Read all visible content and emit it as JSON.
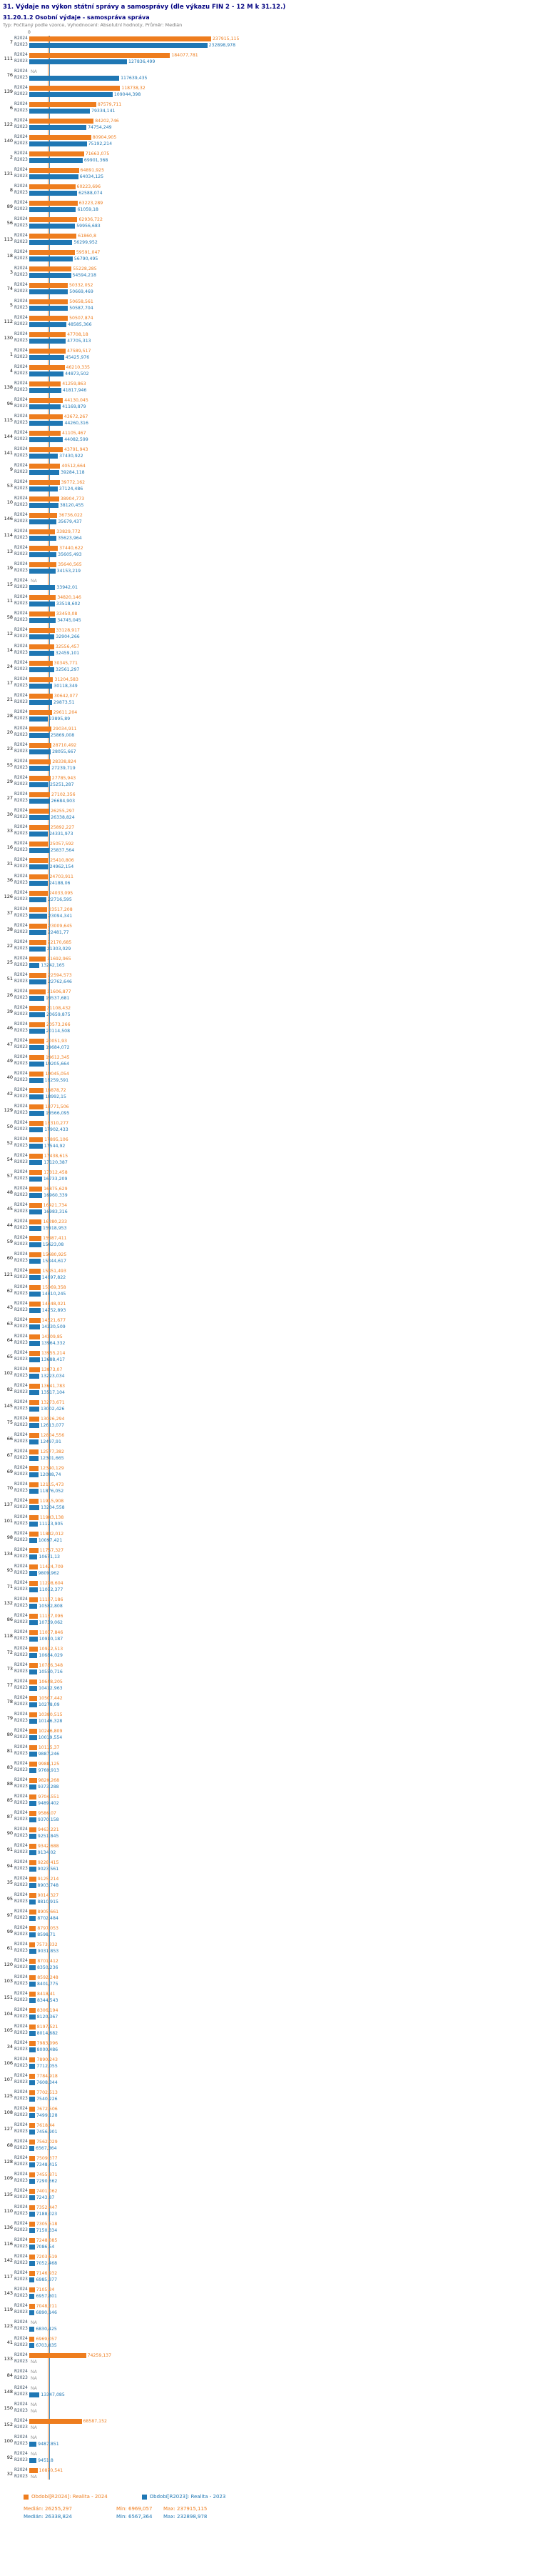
{
  "header": {
    "title": "31. Výdaje na výkon státní správy a samosprávy (dle výkazu FIN 2 - 12 M k 31.12.)",
    "subtitle": "31.20.1.2 Osobní výdaje - samospráva správa",
    "meta": "Typ: Počítaný podle vzorce, Vyhodnocení: Absolutní hodnoty, Průměr: Medián"
  },
  "colors": {
    "r2024": "#ee7d1e",
    "r2023": "#1f77b4",
    "na": "#999999"
  },
  "chart_data": {
    "type": "bar",
    "orientation": "horizontal",
    "title": "31.20.1.2 Osobní výdaje - samospráva správa",
    "series_labels": [
      "R2024",
      "R2023"
    ],
    "axis_zero_label": "0",
    "max_value": 237915.115,
    "grid": false,
    "legend_position": "bottom",
    "medians": {
      "r2024": 26255.297,
      "r2023": 26338.824
    },
    "mins": {
      "r2024": 6969.057,
      "r2023": 6567.364
    },
    "maxs": {
      "r2024": 237915.115,
      "r2023": 232898.978
    },
    "rows": [
      {
        "id": "7",
        "r2024": 237915.115,
        "r2023": 232898.978
      },
      {
        "id": "111",
        "r2024": 184077.781,
        "r2023": 127836.499
      },
      {
        "id": "76",
        "r2024": null,
        "r2023": 117639.435
      },
      {
        "id": "139",
        "r2024": 118738.32,
        "r2023": 109044.398
      },
      {
        "id": "6",
        "r2024": 87579.711,
        "r2023": 79334.141
      },
      {
        "id": "122",
        "r2024": 84202.746,
        "r2023": 74754.249
      },
      {
        "id": "140",
        "r2024": 80904.905,
        "r2023": 75192.214
      },
      {
        "id": "2",
        "r2024": 71663.075,
        "r2023": 69901.368
      },
      {
        "id": "131",
        "r2024": 64891.925,
        "r2023": 64034.125
      },
      {
        "id": "8",
        "r2024": 60223.696,
        "r2023": 62588.074
      },
      {
        "id": "89",
        "r2024": 63223.289,
        "r2023": 61059.18
      },
      {
        "id": "56",
        "r2024": 62936.722,
        "r2023": 59956.683
      },
      {
        "id": "113",
        "r2024": 61860.8,
        "r2023": 56299.952
      },
      {
        "id": "18",
        "r2024": 59591.047,
        "r2023": 56790.495
      },
      {
        "id": "3",
        "r2024": 55228.285,
        "r2023": 54594.218
      },
      {
        "id": "74",
        "r2024": 50332.052,
        "r2023": 50669.469
      },
      {
        "id": "5",
        "r2024": 50658.561,
        "r2023": 50587.704
      },
      {
        "id": "112",
        "r2024": 50507.874,
        "r2023": 48585.366
      },
      {
        "id": "130",
        "r2024": 47708.18,
        "r2023": 47705.313
      },
      {
        "id": "1",
        "r2024": 47589.517,
        "r2023": 45425.976
      },
      {
        "id": "4",
        "r2024": 46210.335,
        "r2023": 44873.502
      },
      {
        "id": "138",
        "r2024": 41259.863,
        "r2023": 41817.946
      },
      {
        "id": "96",
        "r2024": 44130.045,
        "r2023": 41169.879
      },
      {
        "id": "115",
        "r2024": 43672.267,
        "r2023": 44260.316
      },
      {
        "id": "144",
        "r2024": 41105.467,
        "r2023": 44082.599
      },
      {
        "id": "141",
        "r2024": 43791.943,
        "r2023": 37430.922
      },
      {
        "id": "9",
        "r2024": 40512.664,
        "r2023": 39284.118
      },
      {
        "id": "53",
        "r2024": 39772.162,
        "r2023": 37124.486
      },
      {
        "id": "10",
        "r2024": 38904.773,
        "r2023": 38120.455
      },
      {
        "id": "146",
        "r2024": 36736.022,
        "r2023": 35679.437
      },
      {
        "id": "114",
        "r2024": 33829.772,
        "r2023": 35623.964
      },
      {
        "id": "13",
        "r2024": 37440.622,
        "r2023": 35605.493
      },
      {
        "id": "19",
        "r2024": 35640.565,
        "r2023": 34153.219
      },
      {
        "id": "15",
        "r2024": null,
        "r2023": 33942.01
      },
      {
        "id": "11",
        "r2024": 34820.146,
        "r2023": 33518.602
      },
      {
        "id": "58",
        "r2024": 33450.08,
        "r2023": 34745.045
      },
      {
        "id": "12",
        "r2024": 33128.917,
        "r2023": 32904.266
      },
      {
        "id": "14",
        "r2024": 32556.457,
        "r2023": 32459.101
      },
      {
        "id": "24",
        "r2024": 30345.771,
        "r2023": 32561.297
      },
      {
        "id": "17",
        "r2024": 31204.583,
        "r2023": 30118.349
      },
      {
        "id": "21",
        "r2024": 30642.077,
        "r2023": 29873.51
      },
      {
        "id": "28",
        "r2024": 29611.204,
        "r2023": 23895.89
      },
      {
        "id": "20",
        "r2024": 29034.911,
        "r2023": 25869.008
      },
      {
        "id": "23",
        "r2024": 28710.492,
        "r2023": 28055.667
      },
      {
        "id": "55",
        "r2024": 28338.824,
        "r2023": 27239.719
      },
      {
        "id": "29",
        "r2024": 27785.943,
        "r2023": 25251.287
      },
      {
        "id": "27",
        "r2024": 27102.356,
        "r2023": 26684.903
      },
      {
        "id": "30",
        "r2024": 26255.297,
        "r2023": 26338.824
      },
      {
        "id": "33",
        "r2024": 25892.227,
        "r2023": 24331.973
      },
      {
        "id": "16",
        "r2024": 25057.592,
        "r2023": 25837.564
      },
      {
        "id": "31",
        "r2024": 25410.806,
        "r2023": 24962.154
      },
      {
        "id": "36",
        "r2024": 24703.911,
        "r2023": 24188.06
      },
      {
        "id": "126",
        "r2024": 24033.095,
        "r2023": 22716.595
      },
      {
        "id": "37",
        "r2024": 23517.208,
        "r2023": 23094.341
      },
      {
        "id": "38",
        "r2024": 23009.645,
        "r2023": 22481.77
      },
      {
        "id": "22",
        "r2024": 22170.685,
        "r2023": 21303.029
      },
      {
        "id": "25",
        "r2024": 21692.965,
        "r2023": 13242.165
      },
      {
        "id": "51",
        "r2024": 22594.573,
        "r2023": 22762.646
      },
      {
        "id": "26",
        "r2024": 21606.877,
        "r2023": 19537.681
      },
      {
        "id": "39",
        "r2024": 21108.432,
        "r2023": 20659.875
      },
      {
        "id": "46",
        "r2024": 20573.266,
        "r2023": 20114.508
      },
      {
        "id": "47",
        "r2024": 20051.93,
        "r2023": 19684.072
      },
      {
        "id": "49",
        "r2024": 19612.345,
        "r2023": 19205.664
      },
      {
        "id": "40",
        "r2024": 19045.054,
        "r2023": 18259.591
      },
      {
        "id": "42",
        "r2024": 18878.72,
        "r2023": 18992.15
      },
      {
        "id": "129",
        "r2024": 18771.506,
        "r2023": 19566.095
      },
      {
        "id": "50",
        "r2024": 18310.277,
        "r2023": 17902.433
      },
      {
        "id": "52",
        "r2024": 17895.106,
        "r2023": 17544.92
      },
      {
        "id": "54",
        "r2024": 17438.615,
        "r2023": 17120.387
      },
      {
        "id": "57",
        "r2024": 17012.458,
        "r2023": 16733.209
      },
      {
        "id": "48",
        "r2024": 16875.629,
        "r2023": 16960.339
      },
      {
        "id": "45",
        "r2024": 16421.734,
        "r2023": 16983.316
      },
      {
        "id": "44",
        "r2024": 16280.233,
        "r2023": 15918.953
      },
      {
        "id": "59",
        "r2024": 15987.411,
        "r2023": 15623.08
      },
      {
        "id": "60",
        "r2024": 15680.925,
        "r2023": 15344.617
      },
      {
        "id": "121",
        "r2024": 15351.493,
        "r2023": 14697.822
      },
      {
        "id": "62",
        "r2024": 15069.358,
        "r2023": 14810.245
      },
      {
        "id": "43",
        "r2024": 14848.021,
        "r2023": 14752.893
      },
      {
        "id": "63",
        "r2024": 14521.677,
        "r2023": 14230.509
      },
      {
        "id": "64",
        "r2024": 14209.85,
        "r2023": 13964.332
      },
      {
        "id": "65",
        "r2024": 13955.214,
        "r2023": 13688.417
      },
      {
        "id": "102",
        "r2024": 13873.07,
        "r2023": 13223.034
      },
      {
        "id": "82",
        "r2024": 13641.783,
        "r2023": 13517.104
      },
      {
        "id": "145",
        "r2024": 13273.671,
        "r2023": 13002.426
      },
      {
        "id": "75",
        "r2024": 13026.294,
        "r2023": 12613.077
      },
      {
        "id": "66",
        "r2024": 12804.556,
        "r2023": 12497.91
      },
      {
        "id": "67",
        "r2024": 12577.382,
        "r2023": 12301.665
      },
      {
        "id": "69",
        "r2024": 12340.129,
        "r2023": 12088.74
      },
      {
        "id": "70",
        "r2024": 12115.473,
        "r2023": 11876.052
      },
      {
        "id": "137",
        "r2024": 11915.908,
        "r2023": 13204.558
      },
      {
        "id": "101",
        "r2024": 11983.138,
        "r2023": 11123.905
      },
      {
        "id": "98",
        "r2024": 11882.012,
        "r2023": 10097.421
      },
      {
        "id": "134",
        "r2024": 11757.327,
        "r2023": 10671.13
      },
      {
        "id": "93",
        "r2024": 11424.709,
        "r2023": 9809.962
      },
      {
        "id": "71",
        "r2024": 11298.604,
        "r2023": 11052.377
      },
      {
        "id": "132",
        "r2024": 11167.186,
        "r2023": 10582.808
      },
      {
        "id": "86",
        "r2024": 11137.096,
        "r2023": 10739.062
      },
      {
        "id": "118",
        "r2024": 11037.846,
        "r2023": 10910.187
      },
      {
        "id": "72",
        "r2024": 10922.513,
        "r2023": 10684.029
      },
      {
        "id": "73",
        "r2024": 10786.348,
        "r2023": 10550.716
      },
      {
        "id": "77",
        "r2024": 10648.205,
        "r2023": 10412.963
      },
      {
        "id": "78",
        "r2024": 10507.442,
        "r2023": 10278.09
      },
      {
        "id": "79",
        "r2024": 10380.515,
        "r2023": 10146.328
      },
      {
        "id": "80",
        "r2024": 10246.809,
        "r2023": 10019.554
      },
      {
        "id": "81",
        "r2024": 10115.37,
        "r2023": 9887.246
      },
      {
        "id": "83",
        "r2024": 9988.125,
        "r2023": 9760.913
      },
      {
        "id": "88",
        "r2024": 9820.268,
        "r2023": 9373.288
      },
      {
        "id": "85",
        "r2024": 9704.551,
        "r2023": 9489.402
      },
      {
        "id": "87",
        "r2024": 9586.07,
        "r2023": 9370.158
      },
      {
        "id": "90",
        "r2024": 9463.221,
        "r2023": 9251.845
      },
      {
        "id": "91",
        "r2024": 9342.688,
        "r2023": 9134.02
      },
      {
        "id": "94",
        "r2024": 9228.415,
        "r2023": 9023.561
      },
      {
        "id": "35",
        "r2024": 9125.214,
        "r2023": 8903.748
      },
      {
        "id": "95",
        "r2024": 9014.327,
        "r2023": 8810.915
      },
      {
        "id": "97",
        "r2024": 8905.661,
        "r2023": 8702.484
      },
      {
        "id": "99",
        "r2024": 8797.053,
        "r2023": 8598.71
      },
      {
        "id": "61",
        "r2024": 7573.332,
        "r2023": 9031.853
      },
      {
        "id": "120",
        "r2024": 8701.412,
        "r2023": 8350.236
      },
      {
        "id": "103",
        "r2024": 8592.248,
        "r2023": 8401.775
      },
      {
        "id": "151",
        "r2024": 8418.41,
        "r2023": 8344.543
      },
      {
        "id": "104",
        "r2024": 8306.194,
        "r2023": 8120.367
      },
      {
        "id": "105",
        "r2024": 8197.521,
        "r2023": 8014.682
      },
      {
        "id": "34",
        "r2024": 7983.096,
        "r2023": 8000.486
      },
      {
        "id": "106",
        "r2024": 7890.243,
        "r2023": 7712.055
      },
      {
        "id": "107",
        "r2024": 7784.918,
        "r2023": 7608.344
      },
      {
        "id": "125",
        "r2024": 7702.513,
        "r2023": 7540.226
      },
      {
        "id": "108",
        "r2024": 7672.506,
        "r2023": 7499.128
      },
      {
        "id": "127",
        "r2024": 7618.44,
        "r2023": 7456.901
      },
      {
        "id": "68",
        "r2024": 7562.029,
        "r2023": 6567.364
      },
      {
        "id": "128",
        "r2024": 7509.377,
        "r2023": 7348.415
      },
      {
        "id": "109",
        "r2024": 7455.871,
        "r2023": 7290.662
      },
      {
        "id": "135",
        "r2024": 7401.062,
        "r2023": 7243.87
      },
      {
        "id": "110",
        "r2024": 7352.447,
        "r2023": 7188.023
      },
      {
        "id": "136",
        "r2024": 7305.518,
        "r2023": 7150.334
      },
      {
        "id": "116",
        "r2024": 7248.085,
        "r2023": 7086.54
      },
      {
        "id": "142",
        "r2024": 7203.619,
        "r2023": 7052.468
      },
      {
        "id": "117",
        "r2024": 7146.932,
        "r2023": 6985.377
      },
      {
        "id": "143",
        "r2024": 7105.24,
        "r2023": 6957.801
      },
      {
        "id": "119",
        "r2024": 7048.211,
        "r2023": 6890.146
      },
      {
        "id": "123",
        "r2024": null,
        "r2023": 6830.425
      },
      {
        "id": "41",
        "r2024": 6969.057,
        "r2023": 6703.835
      },
      {
        "id": "133",
        "r2024": 74259.137,
        "r2023": null
      },
      {
        "id": "84",
        "r2024": null,
        "r2023": null
      },
      {
        "id": "148",
        "r2024": null,
        "r2023": 13347.085
      },
      {
        "id": "150",
        "r2024": null,
        "r2023": null
      },
      {
        "id": "152",
        "r2024": 68587.152,
        "r2023": null
      },
      {
        "id": "100",
        "r2024": null,
        "r2023": 9487.851
      },
      {
        "id": "92",
        "r2024": null,
        "r2023": 9451.8
      },
      {
        "id": "32",
        "r2024": 10870.541,
        "r2023": null
      }
    ]
  },
  "legend": {
    "items": [
      {
        "label": "Období[R2024]: Realita - 2024",
        "color": "#ee7d1e"
      },
      {
        "label": "Období[R2023]: Realita - 2023",
        "color": "#1f77b4"
      }
    ],
    "stats": [
      {
        "median": "Medián: 26255,297",
        "min": "Min: 6969,057",
        "max": "Max: 237915,115"
      },
      {
        "median": "Medián: 26338,824",
        "min": "Min: 6567,364",
        "max": "Max: 232898,978"
      }
    ]
  }
}
